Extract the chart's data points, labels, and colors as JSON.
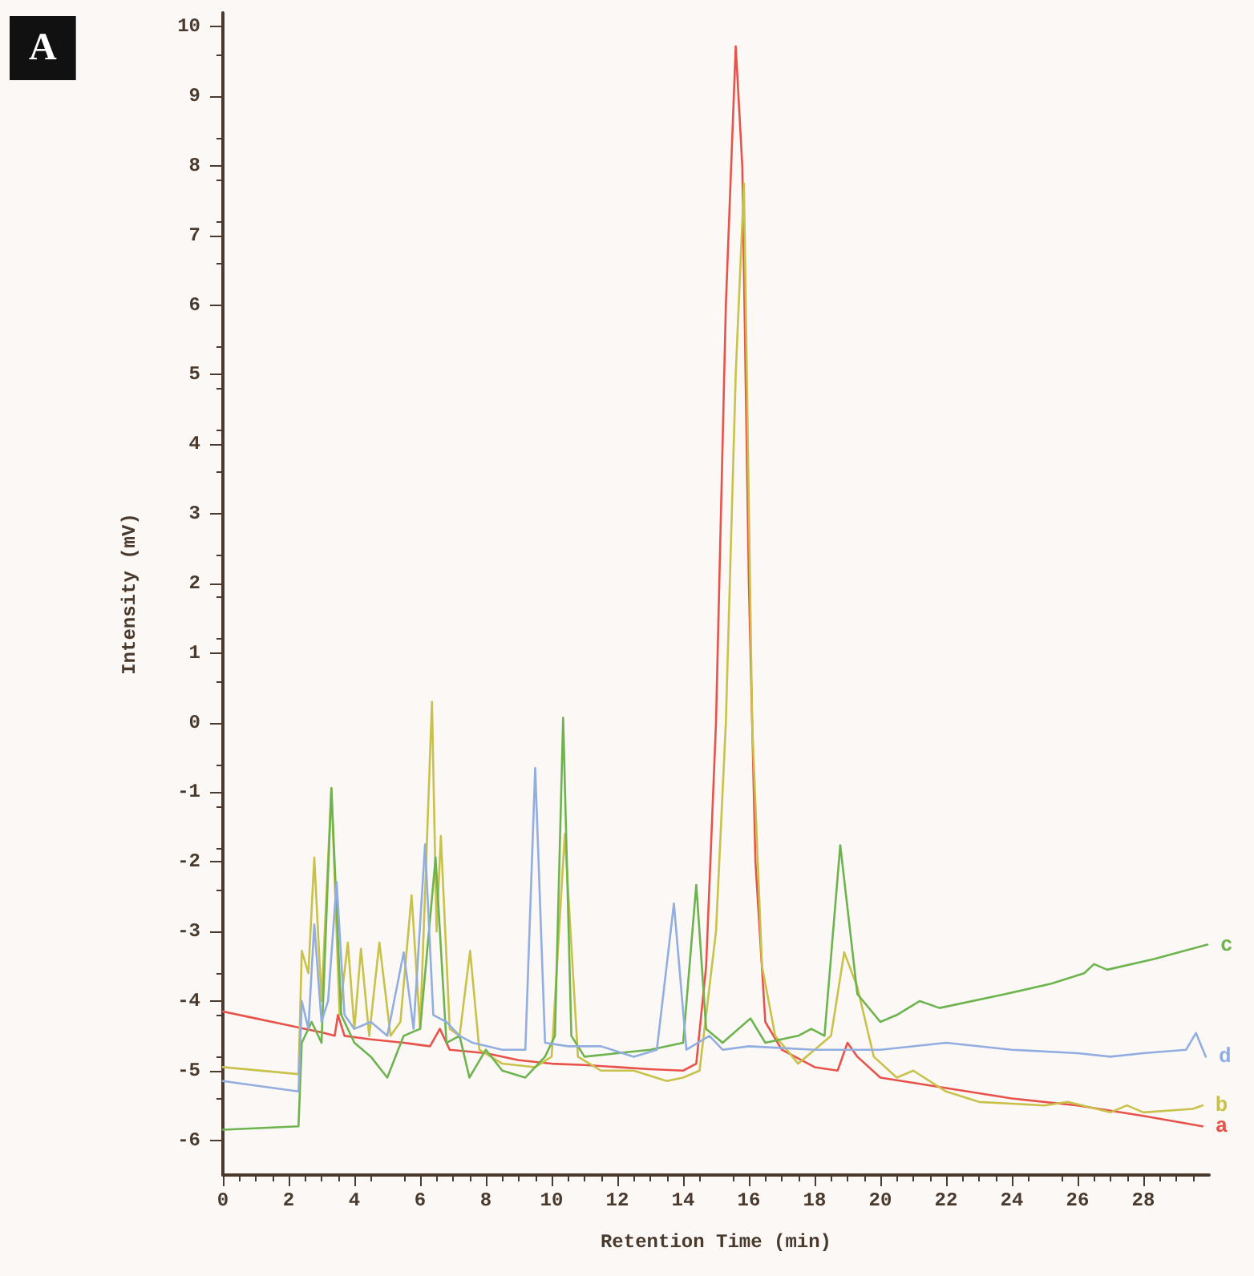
{
  "chart_data": {
    "type": "line",
    "title": "A",
    "xlabel": "Retention Time (min)",
    "ylabel": "Intensity (mV)",
    "xlim": [
      0,
      30
    ],
    "xticks": [
      0,
      2,
      4,
      6,
      8,
      10,
      12,
      14,
      16,
      18,
      20,
      22,
      24,
      26,
      28
    ],
    "ylim": [
      -6.5,
      10.2
    ],
    "yticks": [
      -6,
      -5,
      -4,
      -3,
      -2,
      -1,
      0,
      1,
      2,
      3,
      4,
      5,
      6,
      7,
      8,
      9,
      10
    ],
    "grid": false,
    "legend": false,
    "marker": "none",
    "line_style": "solid",
    "series": [
      {
        "name": "a",
        "color": "#e8524a",
        "x": [
          0,
          1,
          2,
          2.5,
          3,
          3.4,
          3.5,
          3.7,
          4.5,
          5.5,
          6.3,
          6.6,
          6.9,
          8,
          9,
          10,
          11,
          12,
          13,
          14,
          14.4,
          14.7,
          15.0,
          15.3,
          15.6,
          15.8,
          16.0,
          16.2,
          16.5,
          17,
          18,
          18.7,
          19,
          19.3,
          20,
          22,
          24,
          26,
          28,
          29.8
        ],
        "values": [
          -4.15,
          -4.25,
          -4.35,
          -4.4,
          -4.45,
          -4.5,
          -4.2,
          -4.5,
          -4.55,
          -4.6,
          -4.65,
          -4.4,
          -4.7,
          -4.75,
          -4.85,
          -4.9,
          -4.92,
          -4.95,
          -4.98,
          -5.0,
          -4.9,
          -3.5,
          0,
          6,
          9.72,
          8,
          2,
          -2,
          -4.3,
          -4.7,
          -4.95,
          -5.0,
          -4.6,
          -4.8,
          -5.1,
          -5.25,
          -5.4,
          -5.5,
          -5.65,
          -5.8
        ]
      },
      {
        "name": "b",
        "color": "#c9c24a",
        "x": [
          0,
          2.3,
          2.4,
          2.6,
          2.78,
          3.0,
          3.3,
          3.55,
          3.8,
          4.0,
          4.2,
          4.45,
          4.76,
          5.1,
          5.4,
          5.74,
          6.0,
          6.36,
          6.5,
          6.63,
          6.9,
          7.2,
          7.52,
          7.8,
          8.5,
          9.5,
          10.0,
          10.4,
          10.8,
          11.5,
          12.5,
          13.5,
          14.0,
          14.5,
          15.0,
          15.3,
          15.6,
          15.85,
          16.1,
          16.4,
          16.8,
          17.5,
          18.5,
          18.9,
          19.3,
          19.8,
          20.5,
          21,
          22,
          23,
          25,
          25.7,
          27,
          27.5,
          28,
          29.5,
          29.8
        ],
        "values": [
          -4.95,
          -5.05,
          -3.28,
          -3.6,
          -1.94,
          -4.0,
          -0.94,
          -4.2,
          -3.16,
          -4.4,
          -3.25,
          -4.5,
          -3.16,
          -4.5,
          -4.3,
          -2.48,
          -4.4,
          0.3,
          -3.0,
          -1.63,
          -4.4,
          -4.5,
          -3.28,
          -4.7,
          -4.9,
          -4.95,
          -4.8,
          -1.6,
          -4.8,
          -5.0,
          -5.0,
          -5.15,
          -5.1,
          -5.0,
          -3,
          0,
          5,
          7.75,
          0,
          -3.5,
          -4.5,
          -4.9,
          -4.5,
          -3.3,
          -3.8,
          -4.8,
          -5.1,
          -5.0,
          -5.3,
          -5.45,
          -5.5,
          -5.45,
          -5.6,
          -5.5,
          -5.6,
          -5.55,
          -5.5
        ]
      },
      {
        "name": "c",
        "color": "#6db34e",
        "x": [
          0,
          2.3,
          2.4,
          2.7,
          3.0,
          3.3,
          3.6,
          4.0,
          4.5,
          5.0,
          5.5,
          6.0,
          6.47,
          6.8,
          7.2,
          7.5,
          8.0,
          8.5,
          9.2,
          9.8,
          10.1,
          10.35,
          10.6,
          11,
          12,
          13,
          14.0,
          14.4,
          14.7,
          15.2,
          16.05,
          16.5,
          17.5,
          17.9,
          18.3,
          18.78,
          19.3,
          20,
          20.5,
          21.2,
          21.8,
          23.8,
          25.2,
          26.2,
          26.5,
          26.9,
          28.3,
          29.95
        ],
        "values": [
          -5.85,
          -5.8,
          -4.6,
          -4.3,
          -4.6,
          -0.94,
          -4.2,
          -4.6,
          -4.8,
          -5.1,
          -4.5,
          -4.4,
          -1.94,
          -4.6,
          -4.5,
          -5.1,
          -4.7,
          -5.0,
          -5.1,
          -4.8,
          -4.5,
          0.07,
          -4.5,
          -4.8,
          -4.75,
          -4.7,
          -4.6,
          -2.33,
          -4.4,
          -4.6,
          -4.25,
          -4.6,
          -4.5,
          -4.4,
          -4.5,
          -1.76,
          -3.9,
          -4.3,
          -4.2,
          -4.0,
          -4.1,
          -3.9,
          -3.75,
          -3.6,
          -3.47,
          -3.55,
          -3.4,
          -3.19
        ]
      },
      {
        "name": "d",
        "color": "#92aee0",
        "x": [
          0,
          2.3,
          2.4,
          2.6,
          2.78,
          3.0,
          3.2,
          3.46,
          3.7,
          4.0,
          4.5,
          5.0,
          5.5,
          5.8,
          6.15,
          6.4,
          6.8,
          7.2,
          7.6,
          8.5,
          9.2,
          9.5,
          9.8,
          10.5,
          11.5,
          12.5,
          13.2,
          13.72,
          14.1,
          14.8,
          15.2,
          16,
          18,
          20,
          22,
          24,
          26,
          27,
          28,
          29.3,
          29.6,
          29.9
        ],
        "values": [
          -5.15,
          -5.3,
          -4.0,
          -4.4,
          -2.9,
          -4.3,
          -4.0,
          -2.29,
          -4.2,
          -4.4,
          -4.3,
          -4.5,
          -3.3,
          -4.4,
          -1.75,
          -4.2,
          -4.3,
          -4.5,
          -4.6,
          -4.7,
          -4.7,
          -0.65,
          -4.6,
          -4.65,
          -4.65,
          -4.8,
          -4.7,
          -2.6,
          -4.7,
          -4.5,
          -4.7,
          -4.65,
          -4.7,
          -4.7,
          -4.6,
          -4.7,
          -4.75,
          -4.8,
          -4.75,
          -4.7,
          -4.46,
          -4.8
        ]
      }
    ]
  }
}
